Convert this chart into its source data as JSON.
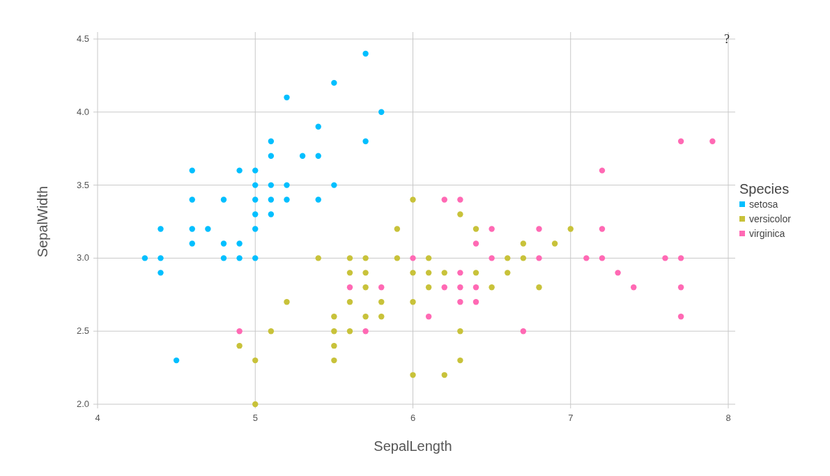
{
  "chart_data": {
    "type": "scatter",
    "xlabel": "SepalLength",
    "ylabel": "SepalWidth",
    "legend_title": "Species",
    "xlim": [
      4,
      8
    ],
    "xticks": [
      4,
      5,
      6,
      7,
      8
    ],
    "ylim": [
      2,
      4.5
    ],
    "yticks": [
      {
        "value": 2,
        "label": "2.0"
      },
      {
        "value": 2.5,
        "label": "2.5"
      },
      {
        "value": 3,
        "label": "3.0"
      },
      {
        "value": 3.5,
        "label": "3.5"
      },
      {
        "value": 4,
        "label": "4.0"
      },
      {
        "value": 4.5,
        "label": "4.5"
      }
    ],
    "grid": true,
    "legend": "right",
    "marker": "circle",
    "annotations": [
      "?"
    ],
    "series": [
      {
        "name": "setosa",
        "color": "#00bfff",
        "x": [
          5.1,
          4.9,
          4.7,
          4.6,
          5.0,
          5.4,
          4.6,
          5.0,
          4.4,
          4.9,
          5.4,
          4.8,
          4.8,
          4.3,
          5.8,
          5.7,
          5.7,
          5.1,
          5.4,
          5.1,
          4.6,
          5.1,
          5.0,
          5.2,
          5.2,
          4.8,
          5.2,
          5.5,
          5.0,
          5.5,
          4.9,
          4.4,
          5.1,
          5.0,
          4.5,
          4.4,
          4.6,
          5.3,
          5.0
        ],
        "values": [
          3.5,
          3.0,
          3.2,
          3.1,
          3.6,
          3.9,
          3.4,
          3.4,
          2.9,
          3.1,
          3.7,
          3.4,
          3.0,
          3.0,
          4.0,
          4.4,
          3.8,
          3.8,
          3.4,
          3.7,
          3.6,
          3.3,
          3.0,
          3.5,
          3.4,
          3.1,
          4.1,
          4.2,
          3.2,
          3.5,
          3.6,
          3.0,
          3.4,
          3.5,
          2.3,
          3.2,
          3.2,
          3.7,
          3.3
        ]
      },
      {
        "name": "versicolor",
        "color": "#c8c23a",
        "x": [
          7.0,
          6.4,
          6.9,
          5.5,
          6.5,
          5.7,
          6.3,
          4.9,
          6.6,
          5.2,
          5.0,
          5.9,
          6.0,
          6.1,
          5.6,
          6.7,
          5.6,
          5.8,
          6.2,
          5.6,
          5.9,
          6.1,
          6.3,
          6.4,
          6.6,
          6.8,
          6.7,
          6.0,
          5.7,
          5.5,
          6.0,
          5.4,
          6.0,
          6.3,
          5.5,
          5.5,
          6.1,
          5.8,
          5.0,
          5.6,
          5.7,
          5.7,
          6.2,
          5.1
        ],
        "values": [
          3.2,
          3.2,
          3.1,
          2.3,
          2.8,
          2.8,
          3.3,
          2.4,
          2.9,
          2.7,
          2.0,
          3.0,
          2.2,
          2.9,
          2.9,
          3.1,
          3.0,
          2.7,
          2.2,
          2.5,
          3.2,
          2.8,
          2.5,
          2.9,
          3.0,
          2.8,
          3.0,
          2.9,
          2.6,
          2.4,
          2.7,
          3.0,
          3.4,
          2.3,
          2.5,
          2.6,
          3.0,
          2.6,
          2.3,
          2.7,
          3.0,
          2.9,
          2.9,
          2.5
        ]
      },
      {
        "name": "virginica",
        "color": "#ff69b4",
        "x": [
          6.3,
          7.1,
          6.5,
          7.6,
          4.9,
          7.3,
          6.7,
          7.2,
          6.5,
          6.4,
          6.8,
          5.7,
          5.8,
          7.7,
          7.7,
          5.6,
          7.7,
          6.3,
          7.2,
          6.2,
          6.4,
          7.2,
          7.4,
          7.9,
          6.3,
          6.1,
          7.7,
          6.3,
          6.4,
          6.0,
          6.8,
          6.2
        ],
        "values": [
          2.9,
          3.0,
          3.0,
          3.0,
          2.5,
          2.9,
          2.5,
          3.6,
          3.2,
          2.7,
          3.0,
          2.5,
          2.8,
          3.8,
          2.6,
          2.8,
          2.8,
          2.7,
          3.2,
          2.8,
          2.8,
          3.0,
          2.8,
          3.8,
          2.8,
          2.6,
          3.0,
          3.4,
          3.1,
          3.0,
          3.2,
          3.4
        ]
      }
    ]
  }
}
